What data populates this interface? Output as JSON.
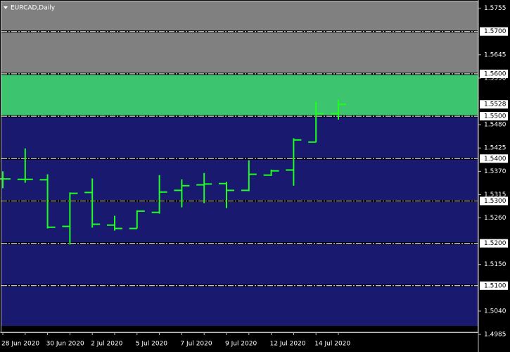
{
  "chart_data": {
    "type": "ohlc",
    "title": "EURCAD,Daily",
    "categories": [
      "28 Jun 2020",
      null,
      "30 Jun 2020",
      null,
      "2 Jul 2020",
      null,
      "5 Jul 2020",
      null,
      "7 Jul 2020",
      null,
      "9 Jul 2020",
      null,
      "12 Jul 2020",
      null,
      "14 Jul 2020",
      null
    ],
    "open": [
      1.5352,
      1.5351,
      1.535,
      1.524,
      1.532,
      1.5243,
      1.5235,
      1.5273,
      1.5325,
      1.5338,
      1.5341,
      1.5325,
      1.5361,
      1.5373,
      1.5439,
      1.5506
    ],
    "high": [
      1.537,
      1.5424,
      1.5363,
      1.532,
      1.5353,
      1.5265,
      1.5278,
      1.5361,
      1.5351,
      1.5366,
      1.5345,
      1.5396,
      1.5374,
      1.5448,
      1.5534,
      1.5539
    ],
    "low": [
      1.533,
      1.5343,
      1.5235,
      1.5197,
      1.5237,
      1.523,
      1.5235,
      1.527,
      1.5285,
      1.5295,
      1.5283,
      1.5323,
      1.5359,
      1.5336,
      1.5438,
      1.5492
    ],
    "close": [
      1.5352,
      1.5351,
      1.5238,
      1.5318,
      1.5245,
      1.5235,
      1.5276,
      1.5321,
      1.5336,
      1.534,
      1.5325,
      1.5363,
      1.5371,
      1.5444,
      1.5506,
      1.5528
    ],
    "color": "#1eff1e",
    "ylim": [
      1.499,
      1.5771
    ],
    "yticks": [
      1.5755,
      1.5645,
      {
        "value": 1.559,
        "label": "1.5590"
      },
      {
        "value": 1.548,
        "label": "1.5480"
      },
      1.5425,
      {
        "value": 1.537,
        "label": "1.5370"
      },
      1.5315,
      {
        "value": 1.526,
        "label": "1.5260"
      },
      {
        "value": 1.515,
        "label": "1.5150"
      },
      {
        "value": 1.504,
        "label": "1.5040"
      },
      1.4985
    ],
    "levels": [
      {
        "value": 1.57,
        "label": "1.5700"
      },
      {
        "value": 1.56,
        "label": "1.5600"
      },
      {
        "value": 1.55,
        "label": "1.5500"
      },
      {
        "value": 1.54,
        "label": "1.5400"
      },
      {
        "value": 1.53,
        "label": "1.5300"
      },
      {
        "value": 1.52,
        "label": "1.5200"
      },
      {
        "value": 1.51,
        "label": "1.5100"
      }
    ],
    "zones": [
      {
        "from": 1.56,
        "to": 1.5771,
        "color": "#808080"
      },
      {
        "from": 1.55,
        "to": 1.56,
        "color": "#3cc46e"
      },
      {
        "from": 1.5005,
        "to": 1.55,
        "color": "#191970"
      }
    ],
    "current_price": 1.5528
  }
}
